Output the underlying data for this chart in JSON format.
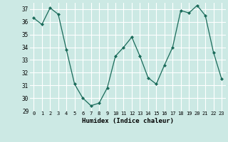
{
  "x": [
    0,
    1,
    2,
    3,
    4,
    5,
    6,
    7,
    8,
    9,
    10,
    11,
    12,
    13,
    14,
    15,
    16,
    17,
    18,
    19,
    20,
    21,
    22,
    23
  ],
  "y": [
    36.3,
    35.8,
    37.1,
    36.6,
    33.8,
    31.1,
    30.0,
    29.4,
    29.6,
    30.8,
    33.3,
    34.0,
    34.8,
    33.3,
    31.6,
    31.1,
    32.6,
    34.0,
    36.9,
    36.7,
    37.3,
    36.5,
    33.6,
    31.5
  ],
  "title": "",
  "xlabel": "Humidex (Indice chaleur)",
  "ylabel": "",
  "xlim": [
    -0.5,
    23.5
  ],
  "ylim": [
    29,
    37.5
  ],
  "yticks": [
    29,
    30,
    31,
    32,
    33,
    34,
    35,
    36,
    37
  ],
  "xticks": [
    0,
    1,
    2,
    3,
    4,
    5,
    6,
    7,
    8,
    9,
    10,
    11,
    12,
    13,
    14,
    15,
    16,
    17,
    18,
    19,
    20,
    21,
    22,
    23
  ],
  "line_color": "#1a6b5a",
  "marker": "D",
  "marker_size": 2.0,
  "bg_color": "#cce9e4",
  "grid_color": "#ffffff",
  "fig_bg_color": "#cce9e4"
}
